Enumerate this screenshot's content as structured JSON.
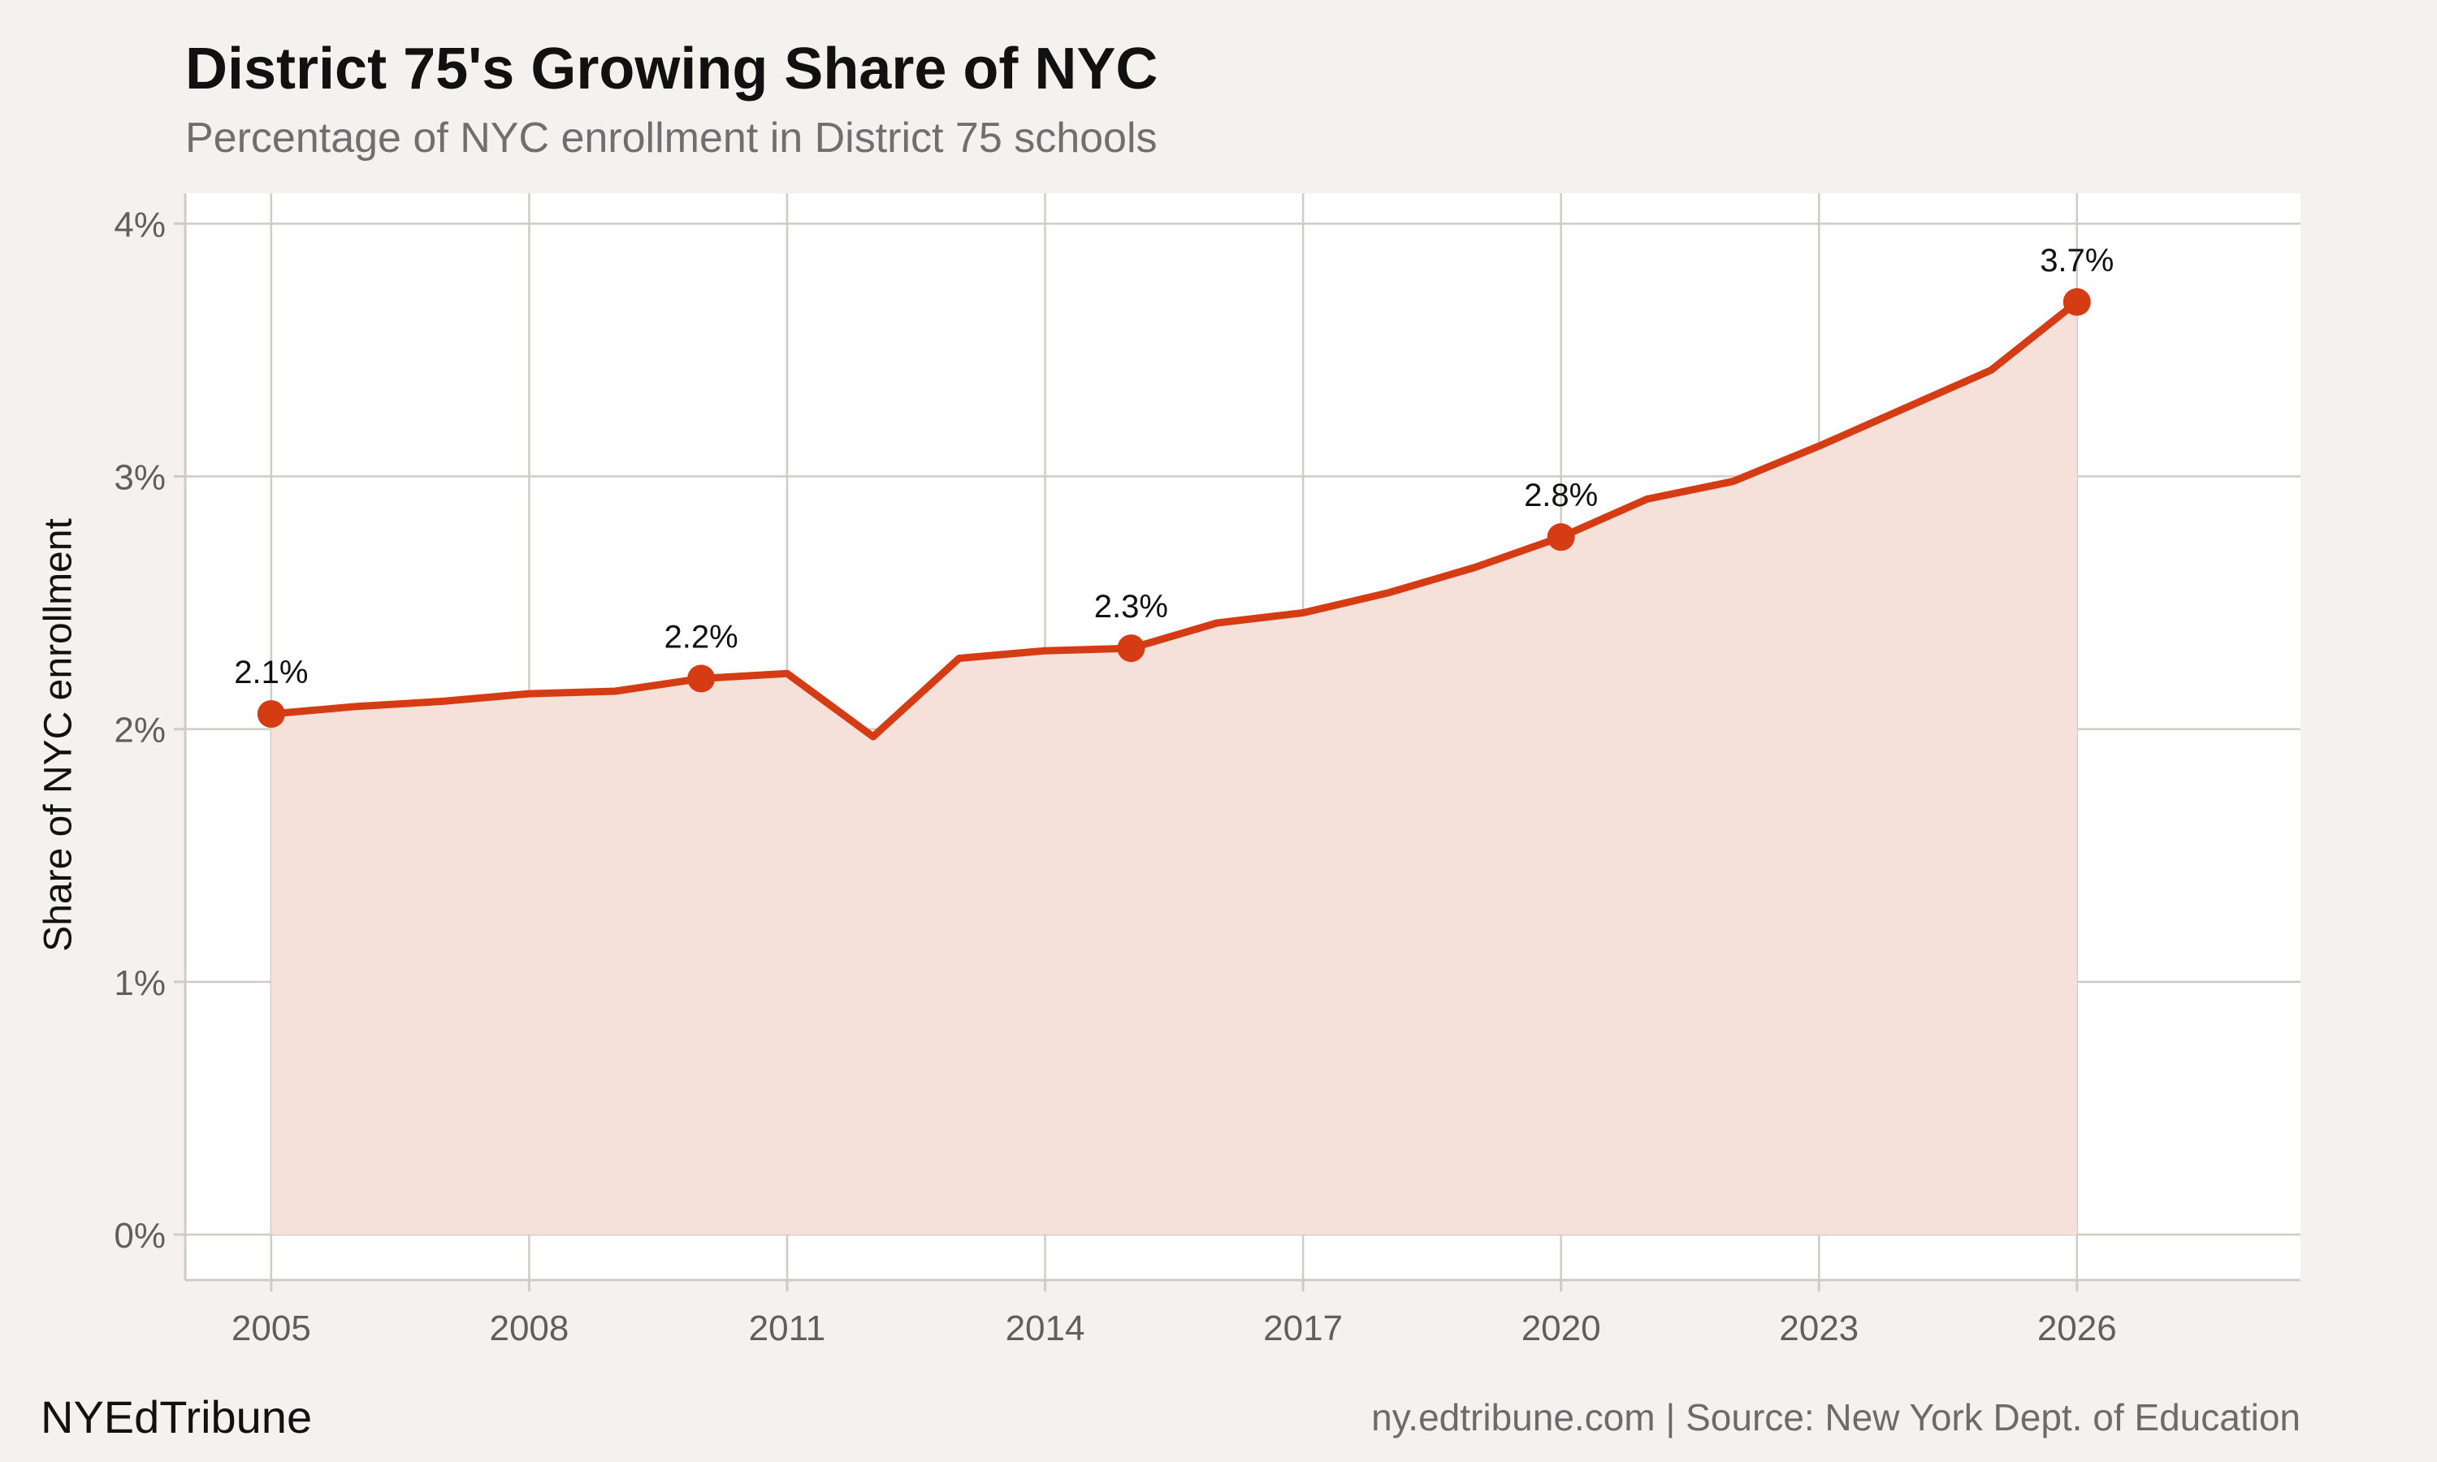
{
  "title": "District 75's Growing Share of NYC",
  "subtitle": "Percentage of NYC enrollment in District 75 schools",
  "footer": {
    "brand": "NYEdTribune",
    "source": "ny.edtribune.com | Source: New York Dept. of Education"
  },
  "colors": {
    "line": "#d63c14",
    "area": "#f6e0da",
    "grid": "#cfcbc5",
    "panel": "#ffffff",
    "background": "#f4f2ee"
  },
  "chart_data": {
    "type": "area",
    "ylabel": "Share of NYC enrollment",
    "xlabel": "",
    "xlim": [
      2004,
      2028.6
    ],
    "ylim": [
      -0.18,
      4.12
    ],
    "x_ticks": [
      2005,
      2008,
      2011,
      2014,
      2017,
      2020,
      2023,
      2026
    ],
    "y_ticks": [
      0,
      1,
      2,
      3,
      4
    ],
    "y_tick_labels": [
      "0%",
      "1%",
      "2%",
      "3%",
      "4%"
    ],
    "grid": true,
    "series": [
      {
        "x": [
          2005,
          2006,
          2007,
          2008,
          2009,
          2010,
          2011,
          2012,
          2013,
          2014,
          2015,
          2016,
          2017,
          2018,
          2019,
          2020,
          2021,
          2022,
          2023,
          2024,
          2025,
          2026
        ],
        "values": [
          2.06,
          2.09,
          2.11,
          2.14,
          2.15,
          2.2,
          2.22,
          1.97,
          2.28,
          2.31,
          2.32,
          2.42,
          2.46,
          2.54,
          2.64,
          2.76,
          2.91,
          2.98,
          3.12,
          3.27,
          3.42,
          3.69
        ]
      }
    ],
    "highlighted_points": [
      {
        "x": 2005,
        "value": 2.06,
        "label": "2.1%"
      },
      {
        "x": 2010,
        "value": 2.2,
        "label": "2.2%"
      },
      {
        "x": 2015,
        "value": 2.32,
        "label": "2.3%"
      },
      {
        "x": 2020,
        "value": 2.76,
        "label": "2.8%"
      },
      {
        "x": 2026,
        "value": 3.69,
        "label": "3.7%"
      }
    ]
  }
}
